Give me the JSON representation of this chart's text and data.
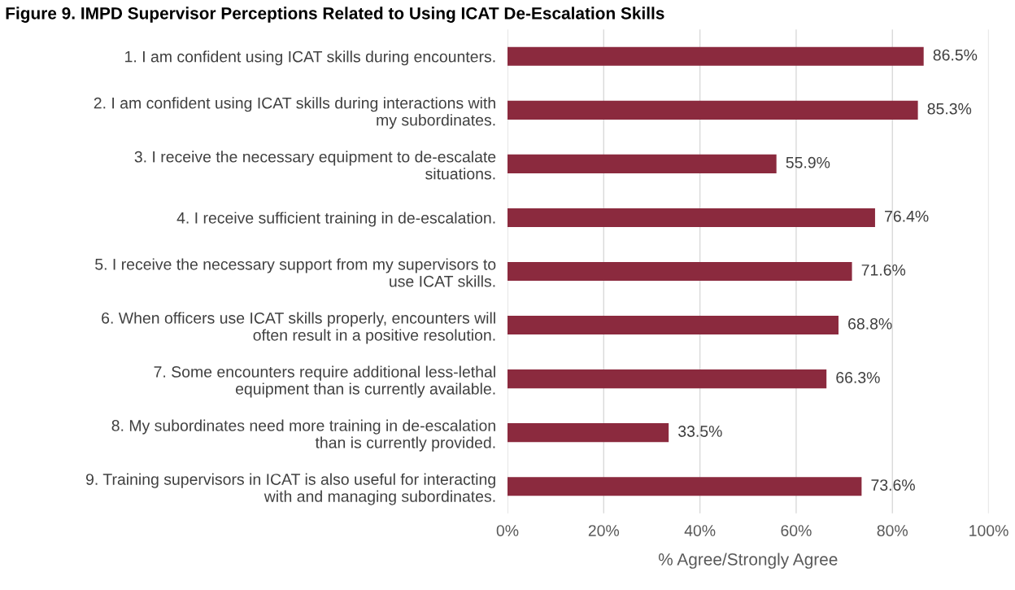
{
  "chart_data": {
    "type": "bar",
    "orientation": "horizontal",
    "title": "Figure 9. IMPD Supervisor Perceptions Related to Using ICAT De-Escalation Skills",
    "xlabel": "% Agree/Strongly Agree",
    "categories": [
      "1. I am confident using ICAT skills during encounters.",
      "2. I am confident using ICAT skills during interactions with\nmy subordinates.",
      "3. I receive the necessary equipment to de-escalate\nsituations.",
      "4. I receive sufficient training in de-escalation.",
      "5. I receive the necessary support from my supervisors to\nuse ICAT skills.",
      "6. When officers use ICAT skills properly, encounters will\noften result in a positive resolution.",
      "7. Some encounters require additional less-lethal\nequipment than is currently available.",
      "8. My subordinates need more training in de-escalation\nthan is currently provided.",
      "9. Training supervisors in ICAT is also useful for interacting\nwith and managing subordinates."
    ],
    "values": [
      86.5,
      85.3,
      55.9,
      76.4,
      71.6,
      68.8,
      66.3,
      33.5,
      73.6
    ],
    "value_labels": [
      "86.5%",
      "85.3%",
      "55.9%",
      "76.4%",
      "71.6%",
      "68.8%",
      "66.3%",
      "33.5%",
      "73.6%"
    ],
    "color": "#8b2a3e",
    "xlim": [
      0,
      100
    ],
    "xticks": [
      {
        "value": 0,
        "label": "0%"
      },
      {
        "value": 20,
        "label": "20%"
      },
      {
        "value": 40,
        "label": "40%"
      },
      {
        "value": 60,
        "label": "60%"
      },
      {
        "value": 80,
        "label": "80%"
      },
      {
        "value": 100,
        "label": "100%"
      }
    ],
    "grid": "x",
    "legend": false
  }
}
